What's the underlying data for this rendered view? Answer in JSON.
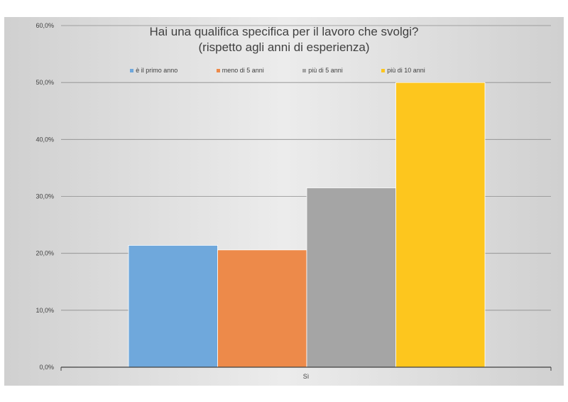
{
  "chart_data": {
    "type": "bar",
    "title_lines": [
      "Hai una qualifica specifica per il lavoro che svolgi?",
      "(rispetto agli anni di esperienza)"
    ],
    "categories": [
      "Sì"
    ],
    "series": [
      {
        "name": "è il primo anno",
        "values": [
          21.4
        ],
        "color": "#6fa8dc"
      },
      {
        "name": "meno di 5 anni",
        "values": [
          20.6
        ],
        "color": "#ed8a4a"
      },
      {
        "name": "più di 5 anni",
        "values": [
          31.5
        ],
        "color": "#a5a5a5"
      },
      {
        "name": "più di 10 anni",
        "values": [
          50.0
        ],
        "color": "#fdc61e"
      }
    ],
    "ylim": [
      0,
      60
    ],
    "ytick_labels": [
      "0,0%",
      "10,0%",
      "20,0%",
      "30,0%",
      "40,0%",
      "50,0%",
      "60,0%"
    ],
    "grid": true,
    "legend_position": "top"
  }
}
